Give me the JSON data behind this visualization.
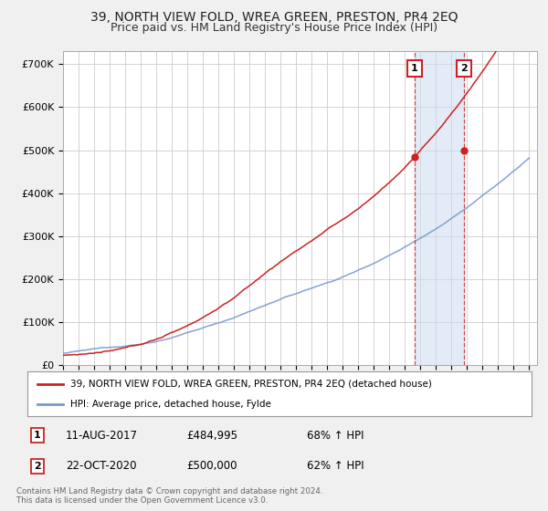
{
  "title": "39, NORTH VIEW FOLD, WREA GREEN, PRESTON, PR4 2EQ",
  "subtitle": "Price paid vs. HM Land Registry's House Price Index (HPI)",
  "ylabel_ticks": [
    "£0",
    "£100K",
    "£200K",
    "£300K",
    "£400K",
    "£500K",
    "£600K",
    "£700K"
  ],
  "ytick_values": [
    0,
    100000,
    200000,
    300000,
    400000,
    500000,
    600000,
    700000
  ],
  "ylim": [
    0,
    730000
  ],
  "red_color": "#cc2222",
  "blue_color": "#7799cc",
  "marker_vline_color": "#cc2222",
  "shade_color": "#ccddf0",
  "marker1_x": 2017.614,
  "marker2_x": 2020.789,
  "marker1_price": 484995,
  "marker2_price": 500000,
  "legend_entry1": "39, NORTH VIEW FOLD, WREA GREEN, PRESTON, PR4 2EQ (detached house)",
  "legend_entry2": "HPI: Average price, detached house, Fylde",
  "row1_num": "1",
  "row1_date": "11-AUG-2017",
  "row1_price": "£484,995",
  "row1_pct": "68% ↑ HPI",
  "row2_num": "2",
  "row2_date": "22-OCT-2020",
  "row2_price": "£500,000",
  "row2_pct": "62% ↑ HPI",
  "footnote": "Contains HM Land Registry data © Crown copyright and database right 2024.\nThis data is licensed under the Open Government Licence v3.0.",
  "background_color": "#f0f0f0",
  "plot_background": "#ffffff",
  "grid_color": "#cccccc",
  "title_fontsize": 10,
  "subtitle_fontsize": 9
}
